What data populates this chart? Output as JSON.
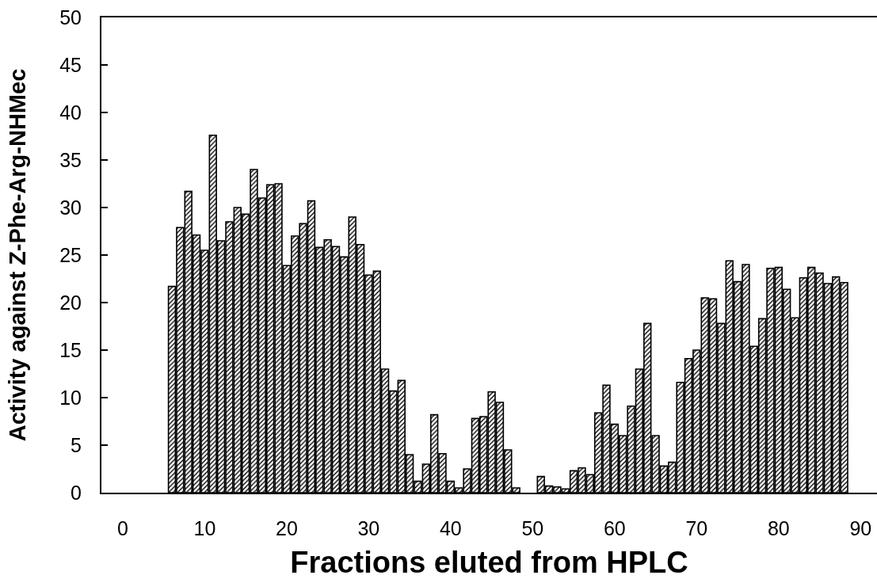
{
  "chart_data": {
    "type": "bar",
    "xlabel": "Fractions eluted from HPLC",
    "ylabel": "Activity against Z-Phe-Arg-NHMec",
    "x": [
      6,
      7,
      8,
      9,
      10,
      11,
      12,
      13,
      14,
      15,
      16,
      17,
      18,
      19,
      20,
      21,
      22,
      23,
      24,
      25,
      26,
      27,
      28,
      29,
      30,
      31,
      32,
      33,
      34,
      35,
      36,
      37,
      38,
      39,
      40,
      41,
      42,
      43,
      44,
      45,
      46,
      47,
      48,
      49,
      50,
      51,
      52,
      53,
      54,
      55,
      56,
      57,
      58,
      59,
      60,
      61,
      62,
      63,
      64,
      65,
      66,
      67,
      68,
      69,
      70,
      71,
      72,
      73,
      74,
      75,
      76,
      77,
      78,
      79,
      80,
      81,
      82,
      83,
      84,
      85,
      86,
      87,
      88
    ],
    "values": [
      21.7,
      27.9,
      31.7,
      27.1,
      25.5,
      37.6,
      26.5,
      28.5,
      30.0,
      29.3,
      34.0,
      31.0,
      32.4,
      32.5,
      23.9,
      27.0,
      28.3,
      30.7,
      25.8,
      26.6,
      25.9,
      24.8,
      29.0,
      26.1,
      22.9,
      23.3,
      13.0,
      10.7,
      11.8,
      4.0,
      1.2,
      3.0,
      8.2,
      4.1,
      1.2,
      0.5,
      2.5,
      7.8,
      8.0,
      10.6,
      9.5,
      4.5,
      0.5,
      null,
      null,
      1.7,
      0.7,
      0.6,
      0.4,
      2.3,
      2.6,
      1.9,
      8.4,
      11.3,
      7.2,
      6.0,
      9.1,
      13.0,
      17.8,
      6.0,
      2.8,
      3.2,
      11.6,
      14.1,
      15.0,
      20.5,
      20.4,
      17.8,
      24.4,
      22.2,
      24.0,
      15.4,
      18.3,
      23.6,
      23.7,
      21.4,
      18.4,
      22.6,
      23.7,
      23.1,
      22.0,
      22.7,
      22.1
    ],
    "color": "#000000",
    "xlim": [
      -2.6,
      92.0
    ],
    "xticks": [
      0,
      10,
      20,
      30,
      40,
      50,
      60,
      70,
      80,
      90
    ],
    "ylim": [
      0,
      50
    ],
    "yticks": [
      0,
      5,
      10,
      15,
      20,
      25,
      30,
      35,
      40,
      45,
      50
    ]
  }
}
